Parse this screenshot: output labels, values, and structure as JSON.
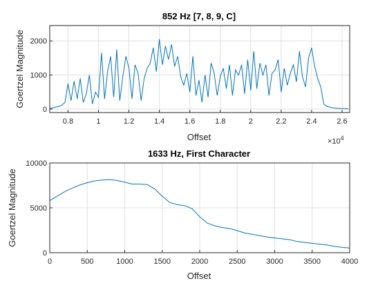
{
  "figure": {
    "background": "#ffffff",
    "line_color": "#0072bd",
    "grid_color": "#dfdfdf"
  },
  "chart_data": [
    {
      "type": "line",
      "title": "852 Hz [7, 8, 9, C]",
      "xlabel": "Offset",
      "ylabel": "Goertzel Magnitude",
      "x_exponent_label": "×10",
      "x_exponent_power": "4",
      "xlim": [
        6800,
        26500
      ],
      "ylim": [
        -100,
        2450
      ],
      "x_ticks": [
        8000,
        10000,
        12000,
        14000,
        16000,
        18000,
        20000,
        22000,
        24000,
        26000
      ],
      "x_tick_labels": [
        "0.8",
        "1",
        "1.2",
        "1.4",
        "1.6",
        "1.8",
        "2",
        "2.2",
        "2.4",
        "2.6"
      ],
      "y_ticks": [
        0,
        1000,
        2000
      ],
      "y_tick_labels": [
        "0",
        "1000",
        "2000"
      ],
      "grid": true,
      "series": [
        {
          "color": "#0072bd",
          "x": [
            6800,
            7000,
            7200,
            7400,
            7600,
            7800,
            8000,
            8200,
            8400,
            8600,
            8800,
            9000,
            9200,
            9400,
            9600,
            9800,
            10000,
            10200,
            10400,
            10600,
            10800,
            11000,
            11200,
            11400,
            11600,
            11800,
            12000,
            12200,
            12400,
            12600,
            12800,
            13000,
            13200,
            13400,
            13600,
            13800,
            14000,
            14200,
            14400,
            14600,
            14800,
            15000,
            15200,
            15400,
            15600,
            15800,
            16000,
            16200,
            16400,
            16600,
            16800,
            17000,
            17200,
            17400,
            17600,
            17800,
            18000,
            18200,
            18400,
            18600,
            18800,
            19000,
            19200,
            19400,
            19600,
            19800,
            20000,
            20200,
            20400,
            20600,
            20800,
            21000,
            21200,
            21400,
            21600,
            21800,
            22000,
            22200,
            22400,
            22600,
            22800,
            23000,
            23200,
            23400,
            23600,
            23800,
            24000,
            24200,
            24400,
            24600,
            24800,
            25000,
            25200,
            25400,
            25600,
            25800,
            26000,
            26200,
            26400
          ],
          "y": [
            20,
            40,
            60,
            80,
            120,
            200,
            750,
            250,
            820,
            300,
            900,
            200,
            450,
            1000,
            150,
            500,
            350,
            1650,
            300,
            1100,
            1550,
            350,
            1750,
            250,
            950,
            1550,
            1200,
            300,
            1300,
            1050,
            250,
            900,
            1200,
            1350,
            1800,
            1100,
            2050,
            1300,
            1850,
            1450,
            1900,
            1250,
            1550,
            950,
            700,
            1050,
            500,
            1550,
            400,
            850,
            200,
            1000,
            350,
            1350,
            1050,
            400,
            950,
            1200,
            600,
            1300,
            400,
            1150,
            1000,
            1300,
            450,
            1450,
            550,
            1700,
            600,
            1350,
            1000,
            1300,
            400,
            1050,
            1150,
            1450,
            500,
            1200,
            700,
            1050,
            1300,
            800,
            1700,
            950,
            650,
            1500,
            1800,
            1250,
            900,
            650,
            150,
            80,
            60,
            40,
            30,
            20,
            20,
            15,
            10
          ]
        }
      ]
    },
    {
      "type": "line",
      "title": "1633 Hz, First Character",
      "xlabel": "Offset",
      "ylabel": "Goertzel Magnitude",
      "xlim": [
        0,
        4000
      ],
      "ylim": [
        0,
        10000
      ],
      "x_ticks": [
        0,
        500,
        1000,
        1500,
        2000,
        2500,
        3000,
        3500,
        4000
      ],
      "x_tick_labels": [
        "0",
        "500",
        "1000",
        "1500",
        "2000",
        "2500",
        "3000",
        "3500",
        "4000"
      ],
      "y_ticks": [
        0,
        5000,
        10000
      ],
      "y_tick_labels": [
        "0",
        "5000",
        "10000"
      ],
      "grid": true,
      "series": [
        {
          "color": "#0072bd",
          "x": [
            0,
            100,
            200,
            300,
            400,
            500,
            600,
            700,
            800,
            900,
            1000,
            1100,
            1200,
            1300,
            1400,
            1500,
            1600,
            1700,
            1800,
            1900,
            2000,
            2100,
            2200,
            2300,
            2400,
            2500,
            2600,
            2700,
            2800,
            2900,
            3000,
            3100,
            3200,
            3300,
            3400,
            3500,
            3600,
            3700,
            3800,
            3900,
            4000
          ],
          "y": [
            5800,
            6300,
            6800,
            7200,
            7550,
            7800,
            8000,
            8100,
            8150,
            8050,
            7850,
            7650,
            7650,
            7600,
            7100,
            6300,
            5600,
            5350,
            5250,
            4900,
            4000,
            3300,
            3000,
            2800,
            2700,
            2450,
            2200,
            2050,
            1900,
            1750,
            1650,
            1550,
            1450,
            1250,
            1150,
            1050,
            950,
            850,
            700,
            600,
            520
          ]
        }
      ]
    }
  ]
}
